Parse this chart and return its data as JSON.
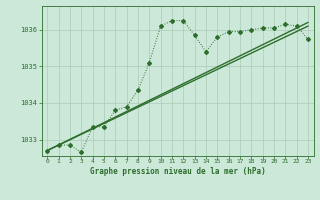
{
  "background_color": "#cce8d8",
  "grid_color": "#aaccb8",
  "line_color": "#2d6e2d",
  "title": "Graphe pression niveau de la mer (hPa)",
  "xlim": [
    -0.5,
    23.5
  ],
  "ylim": [
    1032.55,
    1036.65
  ],
  "yticks": [
    1033,
    1034,
    1035,
    1036
  ],
  "xticks": [
    0,
    1,
    2,
    3,
    4,
    5,
    6,
    7,
    8,
    9,
    10,
    11,
    12,
    13,
    14,
    15,
    16,
    17,
    18,
    19,
    20,
    21,
    22,
    23
  ],
  "series1_x": [
    0,
    1,
    2,
    3,
    4,
    5,
    6,
    7,
    8,
    9,
    10,
    11,
    12,
    13,
    14,
    15,
    16,
    17,
    18,
    19,
    20,
    21,
    22,
    23
  ],
  "series1_y": [
    1032.7,
    1032.85,
    1032.85,
    1032.65,
    1033.35,
    1033.35,
    1033.8,
    1033.9,
    1034.35,
    1035.1,
    1036.1,
    1036.25,
    1036.25,
    1035.85,
    1035.4,
    1035.8,
    1035.95,
    1035.95,
    1036.0,
    1036.05,
    1036.05,
    1036.15,
    1036.1,
    1035.75
  ],
  "series2_x": [
    0,
    23
  ],
  "series2_y": [
    1032.7,
    1036.1
  ],
  "series3_x": [
    0,
    23
  ],
  "series3_y": [
    1032.7,
    1036.2
  ]
}
